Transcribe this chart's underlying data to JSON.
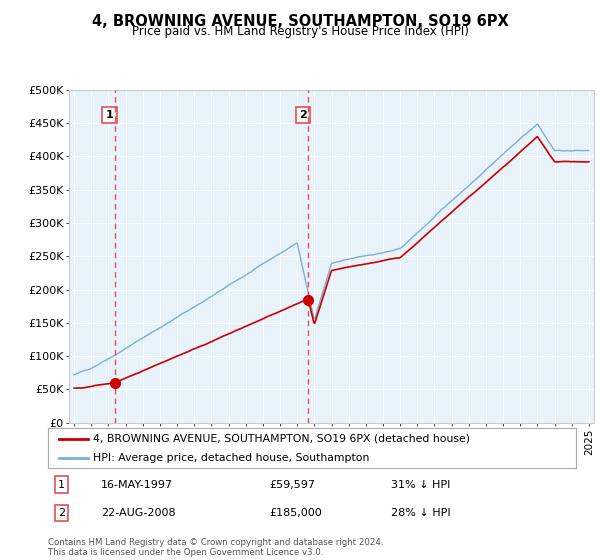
{
  "title": "4, BROWNING AVENUE, SOUTHAMPTON, SO19 6PX",
  "subtitle": "Price paid vs. HM Land Registry's House Price Index (HPI)",
  "hpi_label": "HPI: Average price, detached house, Southampton",
  "sale_label": "4, BROWNING AVENUE, SOUTHAMPTON, SO19 6PX (detached house)",
  "sale_color": "#cc0000",
  "hpi_color": "#7ab0d4",
  "plot_bg": "#e8f2fb",
  "annotation1": {
    "label": "1",
    "date_x": 1997.37,
    "price": 59597,
    "text": "16-MAY-1997",
    "price_str": "£59,597",
    "hpi_str": "31% ↓ HPI"
  },
  "annotation2": {
    "label": "2",
    "date_x": 2008.64,
    "price": 185000,
    "text": "22-AUG-2008",
    "price_str": "£185,000",
    "hpi_str": "28% ↓ HPI"
  },
  "ylim": [
    0,
    500000
  ],
  "xlim": [
    1994.7,
    2025.3
  ],
  "yticks": [
    0,
    50000,
    100000,
    150000,
    200000,
    250000,
    300000,
    350000,
    400000,
    450000,
    500000
  ],
  "ytick_labels": [
    "£0",
    "£50K",
    "£100K",
    "£150K",
    "£200K",
    "£250K",
    "£300K",
    "£350K",
    "£400K",
    "£450K",
    "£500K"
  ],
  "copyright": "Contains HM Land Registry data © Crown copyright and database right 2024.\nThis data is licensed under the Open Government Licence v3.0.",
  "dashed_color": "#e05050"
}
